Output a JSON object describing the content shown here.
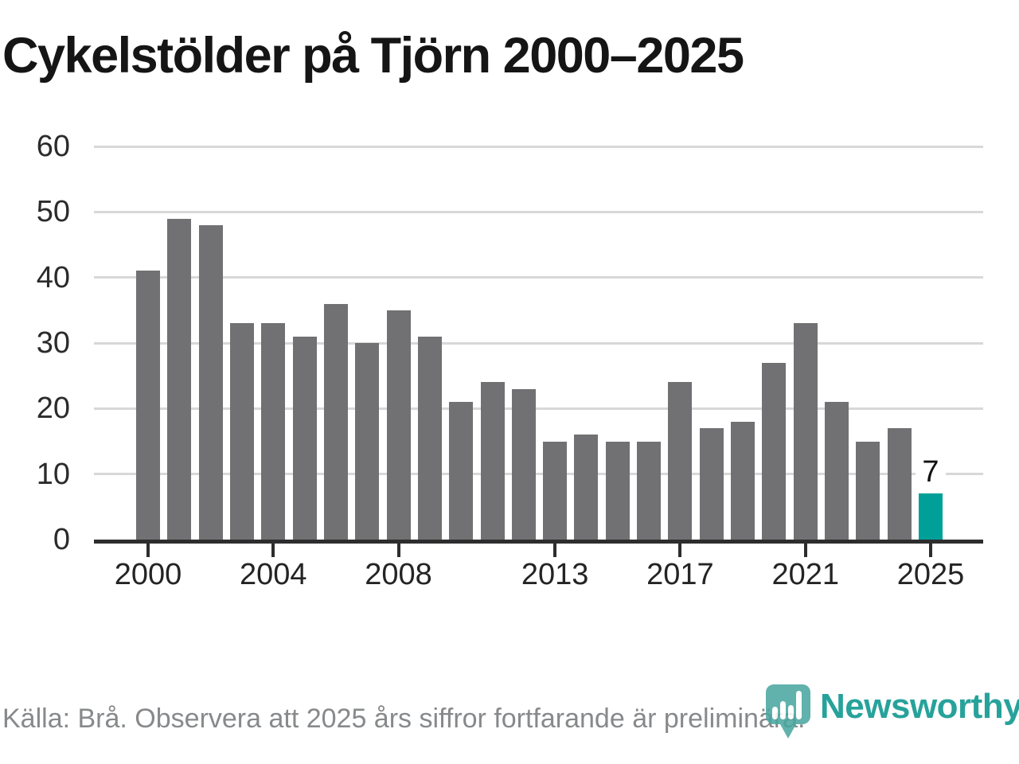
{
  "title": "Cykelstölder på Tjörn 2000–2025",
  "footer": {
    "source_note": "Källa: Brå. Observera att 2025 års siffror fortfarande är preliminära."
  },
  "branding": {
    "logo_text": "Newsworthy",
    "logo_icon": "newsworthy-bar-chart-pin-icon",
    "logo_mark_color": "#4aa6a0",
    "logo_text_color": "#27a29b"
  },
  "chart_data": {
    "type": "bar",
    "title": "Cykelstölder på Tjörn 2000–2025",
    "x": [
      2000,
      2001,
      2002,
      2003,
      2004,
      2005,
      2006,
      2007,
      2008,
      2009,
      2010,
      2011,
      2012,
      2013,
      2014,
      2015,
      2016,
      2017,
      2018,
      2019,
      2020,
      2021,
      2022,
      2023,
      2024,
      2025
    ],
    "values": [
      41,
      49,
      48,
      33,
      33,
      31,
      36,
      30,
      35,
      31,
      21,
      24,
      23,
      15,
      16,
      15,
      15,
      24,
      17,
      18,
      27,
      33,
      21,
      15,
      17,
      7
    ],
    "highlight_year": 2025,
    "highlight_value_label": "7",
    "xlabel": "",
    "ylabel": "",
    "ylim": [
      0,
      60
    ],
    "yticks": [
      0,
      10,
      20,
      30,
      40,
      50,
      60
    ],
    "xticks": [
      2000,
      2004,
      2008,
      2013,
      2017,
      2021,
      2025
    ],
    "grid": true,
    "legend": "none",
    "colors": {
      "bar": "#717174",
      "highlight_bar": "#00a099",
      "gridline": "#d8d8d8",
      "axis_line": "#2d2d2d",
      "tick_label": "#242424"
    }
  }
}
